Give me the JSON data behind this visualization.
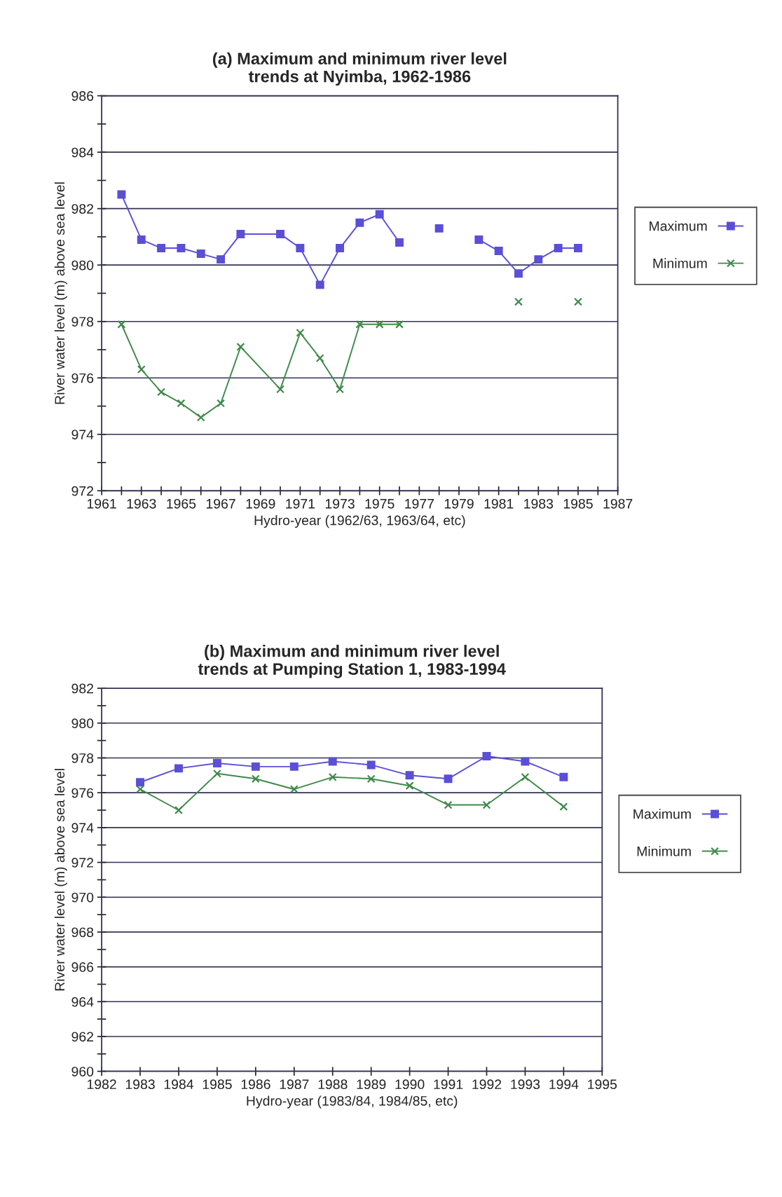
{
  "chart_data": [
    {
      "type": "line",
      "title": "(a) Maximum and minimum river level\ntrends at Nyimba, 1962-1986",
      "xlabel": "Hydro-year (1962/63, 1963/64, etc)",
      "ylabel": "River water level (m) above sea level",
      "x": [
        1962,
        1963,
        1964,
        1965,
        1966,
        1967,
        1968,
        1970,
        1971,
        1972,
        1973,
        1974,
        1975,
        1976,
        1977,
        1978,
        1979,
        1980,
        1981,
        1982,
        1983,
        1984,
        1985
      ],
      "series": [
        {
          "name": "Maximum",
          "color": "#5b4fd6",
          "marker": "square",
          "values": [
            982.5,
            980.9,
            980.6,
            980.6,
            980.4,
            980.2,
            981.1,
            981.1,
            980.6,
            979.3,
            980.6,
            981.5,
            981.8,
            980.8,
            null,
            981.3,
            null,
            980.9,
            980.5,
            979.7,
            980.2,
            980.6,
            980.6
          ]
        },
        {
          "name": "Minimum",
          "color": "#3f8a4a",
          "marker": "cross",
          "values": [
            977.9,
            976.3,
            975.5,
            975.1,
            974.6,
            975.1,
            977.1,
            975.6,
            977.6,
            976.7,
            975.6,
            977.9,
            977.9,
            977.9,
            null,
            null,
            null,
            null,
            null,
            978.7,
            null,
            null,
            978.7
          ]
        }
      ],
      "xlim": [
        1961,
        1987
      ],
      "xticks": [
        1961,
        {
          "value": 1962,
          "label": null
        },
        1963,
        {
          "value": 1964,
          "label": null
        },
        1965,
        {
          "value": 1966,
          "label": null
        },
        1967,
        {
          "value": 1968,
          "label": null
        },
        1969,
        {
          "value": 1970,
          "label": null
        },
        1971,
        {
          "value": 1972,
          "label": null
        },
        1973,
        {
          "value": 1974,
          "label": null
        },
        1975,
        {
          "value": 1976,
          "label": null
        },
        1977,
        {
          "value": 1978,
          "label": null
        },
        1979,
        {
          "value": 1980,
          "label": null
        },
        1981,
        {
          "value": 1982,
          "label": null
        },
        1983,
        {
          "value": 1984,
          "label": null
        },
        1985,
        {
          "value": 1986,
          "label": null
        },
        1987
      ],
      "ylim": [
        972,
        986
      ],
      "yticks": [
        972,
        {
          "value": 973,
          "label": null
        },
        974,
        {
          "value": 975,
          "label": null
        },
        976,
        {
          "value": 977,
          "label": null
        },
        978,
        {
          "value": 979,
          "label": null
        },
        980,
        {
          "value": 981,
          "label": null
        },
        982,
        {
          "value": 983,
          "label": null
        },
        984,
        {
          "value": 985,
          "label": null
        },
        986
      ],
      "grid": "y",
      "legend": "right",
      "line_style": "solid"
    },
    {
      "type": "line",
      "title": "(b) Maximum and minimum river level\ntrends at Pumping Station 1, 1983-1994",
      "xlabel": "Hydro-year (1983/84, 1984/85, etc)",
      "ylabel": "River water level (m) above sea level",
      "x": [
        1983,
        1984,
        1985,
        1986,
        1987,
        1988,
        1989,
        1990,
        1991,
        1992,
        1993,
        1994
      ],
      "series": [
        {
          "name": "Maximum",
          "color": "#5b4fd6",
          "marker": "square",
          "values": [
            976.6,
            977.4,
            977.7,
            977.5,
            977.5,
            977.8,
            977.6,
            977.0,
            976.8,
            978.1,
            977.8,
            976.9
          ]
        },
        {
          "name": "Minimum",
          "color": "#3f8a4a",
          "marker": "cross",
          "values": [
            976.2,
            975.0,
            977.1,
            976.8,
            976.2,
            976.9,
            976.8,
            976.4,
            975.3,
            975.3,
            976.9,
            975.2
          ]
        }
      ],
      "xlim": [
        1982,
        1995
      ],
      "xticks": [
        1982,
        1983,
        1984,
        1985,
        1986,
        1987,
        1988,
        1989,
        1990,
        1991,
        1992,
        1993,
        1994,
        1995
      ],
      "ylim": [
        960,
        982
      ],
      "yticks": [
        960,
        {
          "value": 961,
          "label": null
        },
        962,
        {
          "value": 963,
          "label": null
        },
        964,
        {
          "value": 965,
          "label": null
        },
        966,
        {
          "value": 967,
          "label": null
        },
        968,
        {
          "value": 969,
          "label": null
        },
        970,
        {
          "value": 971,
          "label": null
        },
        972,
        {
          "value": 973,
          "label": null
        },
        974,
        {
          "value": 975,
          "label": null
        },
        976,
        {
          "value": 977,
          "label": null
        },
        978,
        {
          "value": 979,
          "label": null
        },
        980,
        {
          "value": 981,
          "label": null
        },
        982
      ],
      "grid": "y",
      "legend": "right",
      "line_style": "solid"
    }
  ]
}
